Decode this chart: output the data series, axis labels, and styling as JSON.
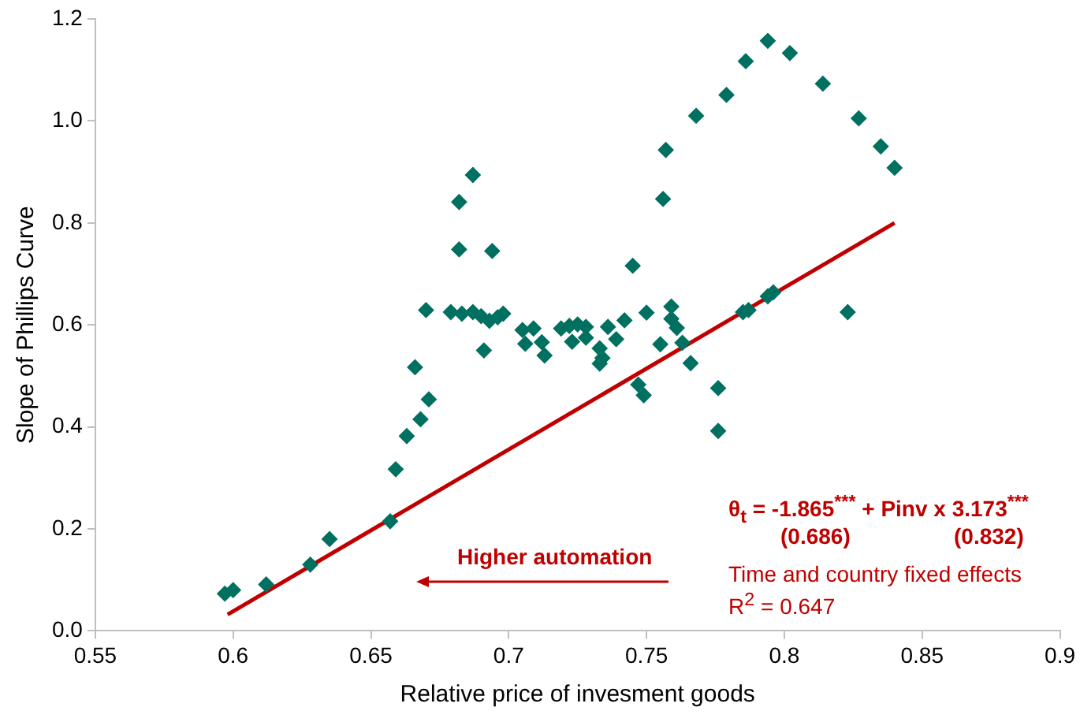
{
  "chart_data": {
    "type": "scatter",
    "xlabel": "Relative price of invesment goods",
    "ylabel": "Slope of Phillips Curve",
    "xlim": [
      0.55,
      0.9
    ],
    "xticks": [
      0.55,
      0.6,
      0.65,
      0.7,
      0.75,
      0.8,
      0.85,
      0.9
    ],
    "ylim": [
      0,
      1.2
    ],
    "yticks": [
      {
        "value": 0,
        "label": "0.0"
      },
      0.2,
      0.4,
      0.6,
      0.8,
      {
        "value": 1,
        "label": "1.0"
      },
      1.2
    ],
    "grid": false,
    "legend": false,
    "series": [
      {
        "marker": "diamond",
        "color": "#007060",
        "x": [
          0.597,
          0.6,
          0.612,
          0.628,
          0.635,
          0.657,
          0.659,
          0.663,
          0.668,
          0.671,
          0.666,
          0.67,
          0.679,
          0.683,
          0.687,
          0.69,
          0.693,
          0.696,
          0.698,
          0.691,
          0.682,
          0.682,
          0.687,
          0.694,
          0.705,
          0.709,
          0.706,
          0.712,
          0.713,
          0.719,
          0.722,
          0.725,
          0.728,
          0.723,
          0.728,
          0.733,
          0.734,
          0.733,
          0.736,
          0.739,
          0.742,
          0.745,
          0.75,
          0.747,
          0.749,
          0.794,
          0.802,
          0.786,
          0.814,
          0.779,
          0.768,
          0.827,
          0.835,
          0.84,
          0.757,
          0.756,
          0.759,
          0.759,
          0.761,
          0.755,
          0.763,
          0.766,
          0.776,
          0.776,
          0.785,
          0.787,
          0.794,
          0.796,
          0.823
        ],
        "values": [
          0.073,
          0.08,
          0.091,
          0.13,
          0.18,
          0.215,
          0.317,
          0.382,
          0.415,
          0.454,
          0.517,
          0.629,
          0.625,
          0.622,
          0.625,
          0.617,
          0.608,
          0.615,
          0.622,
          0.55,
          0.748,
          0.841,
          0.894,
          0.745,
          0.59,
          0.593,
          0.563,
          0.566,
          0.54,
          0.593,
          0.598,
          0.601,
          0.596,
          0.567,
          0.575,
          0.554,
          0.535,
          0.524,
          0.596,
          0.572,
          0.609,
          0.716,
          0.624,
          0.483,
          0.462,
          1.157,
          1.133,
          1.117,
          1.073,
          1.051,
          1.01,
          1.005,
          0.95,
          0.908,
          0.943,
          0.847,
          0.636,
          0.612,
          0.594,
          0.562,
          0.565,
          0.525,
          0.476,
          0.392,
          0.625,
          0.629,
          0.656,
          0.664,
          0.625
        ]
      },
      {
        "type": "line",
        "marker": "none",
        "color": "#c00000",
        "x": [
          0.598,
          0.84
        ],
        "values": [
          0.032,
          0.8
        ]
      }
    ],
    "annotations": [
      "Higher automation",
      "θ$_{t}$ = -1.865$^{***}$ + Pinv x 3.173$^{***}$",
      "(0.686)",
      "(0.832)",
      "Time and country fixed effects",
      "R$^{2}$ = 0.647"
    ]
  }
}
